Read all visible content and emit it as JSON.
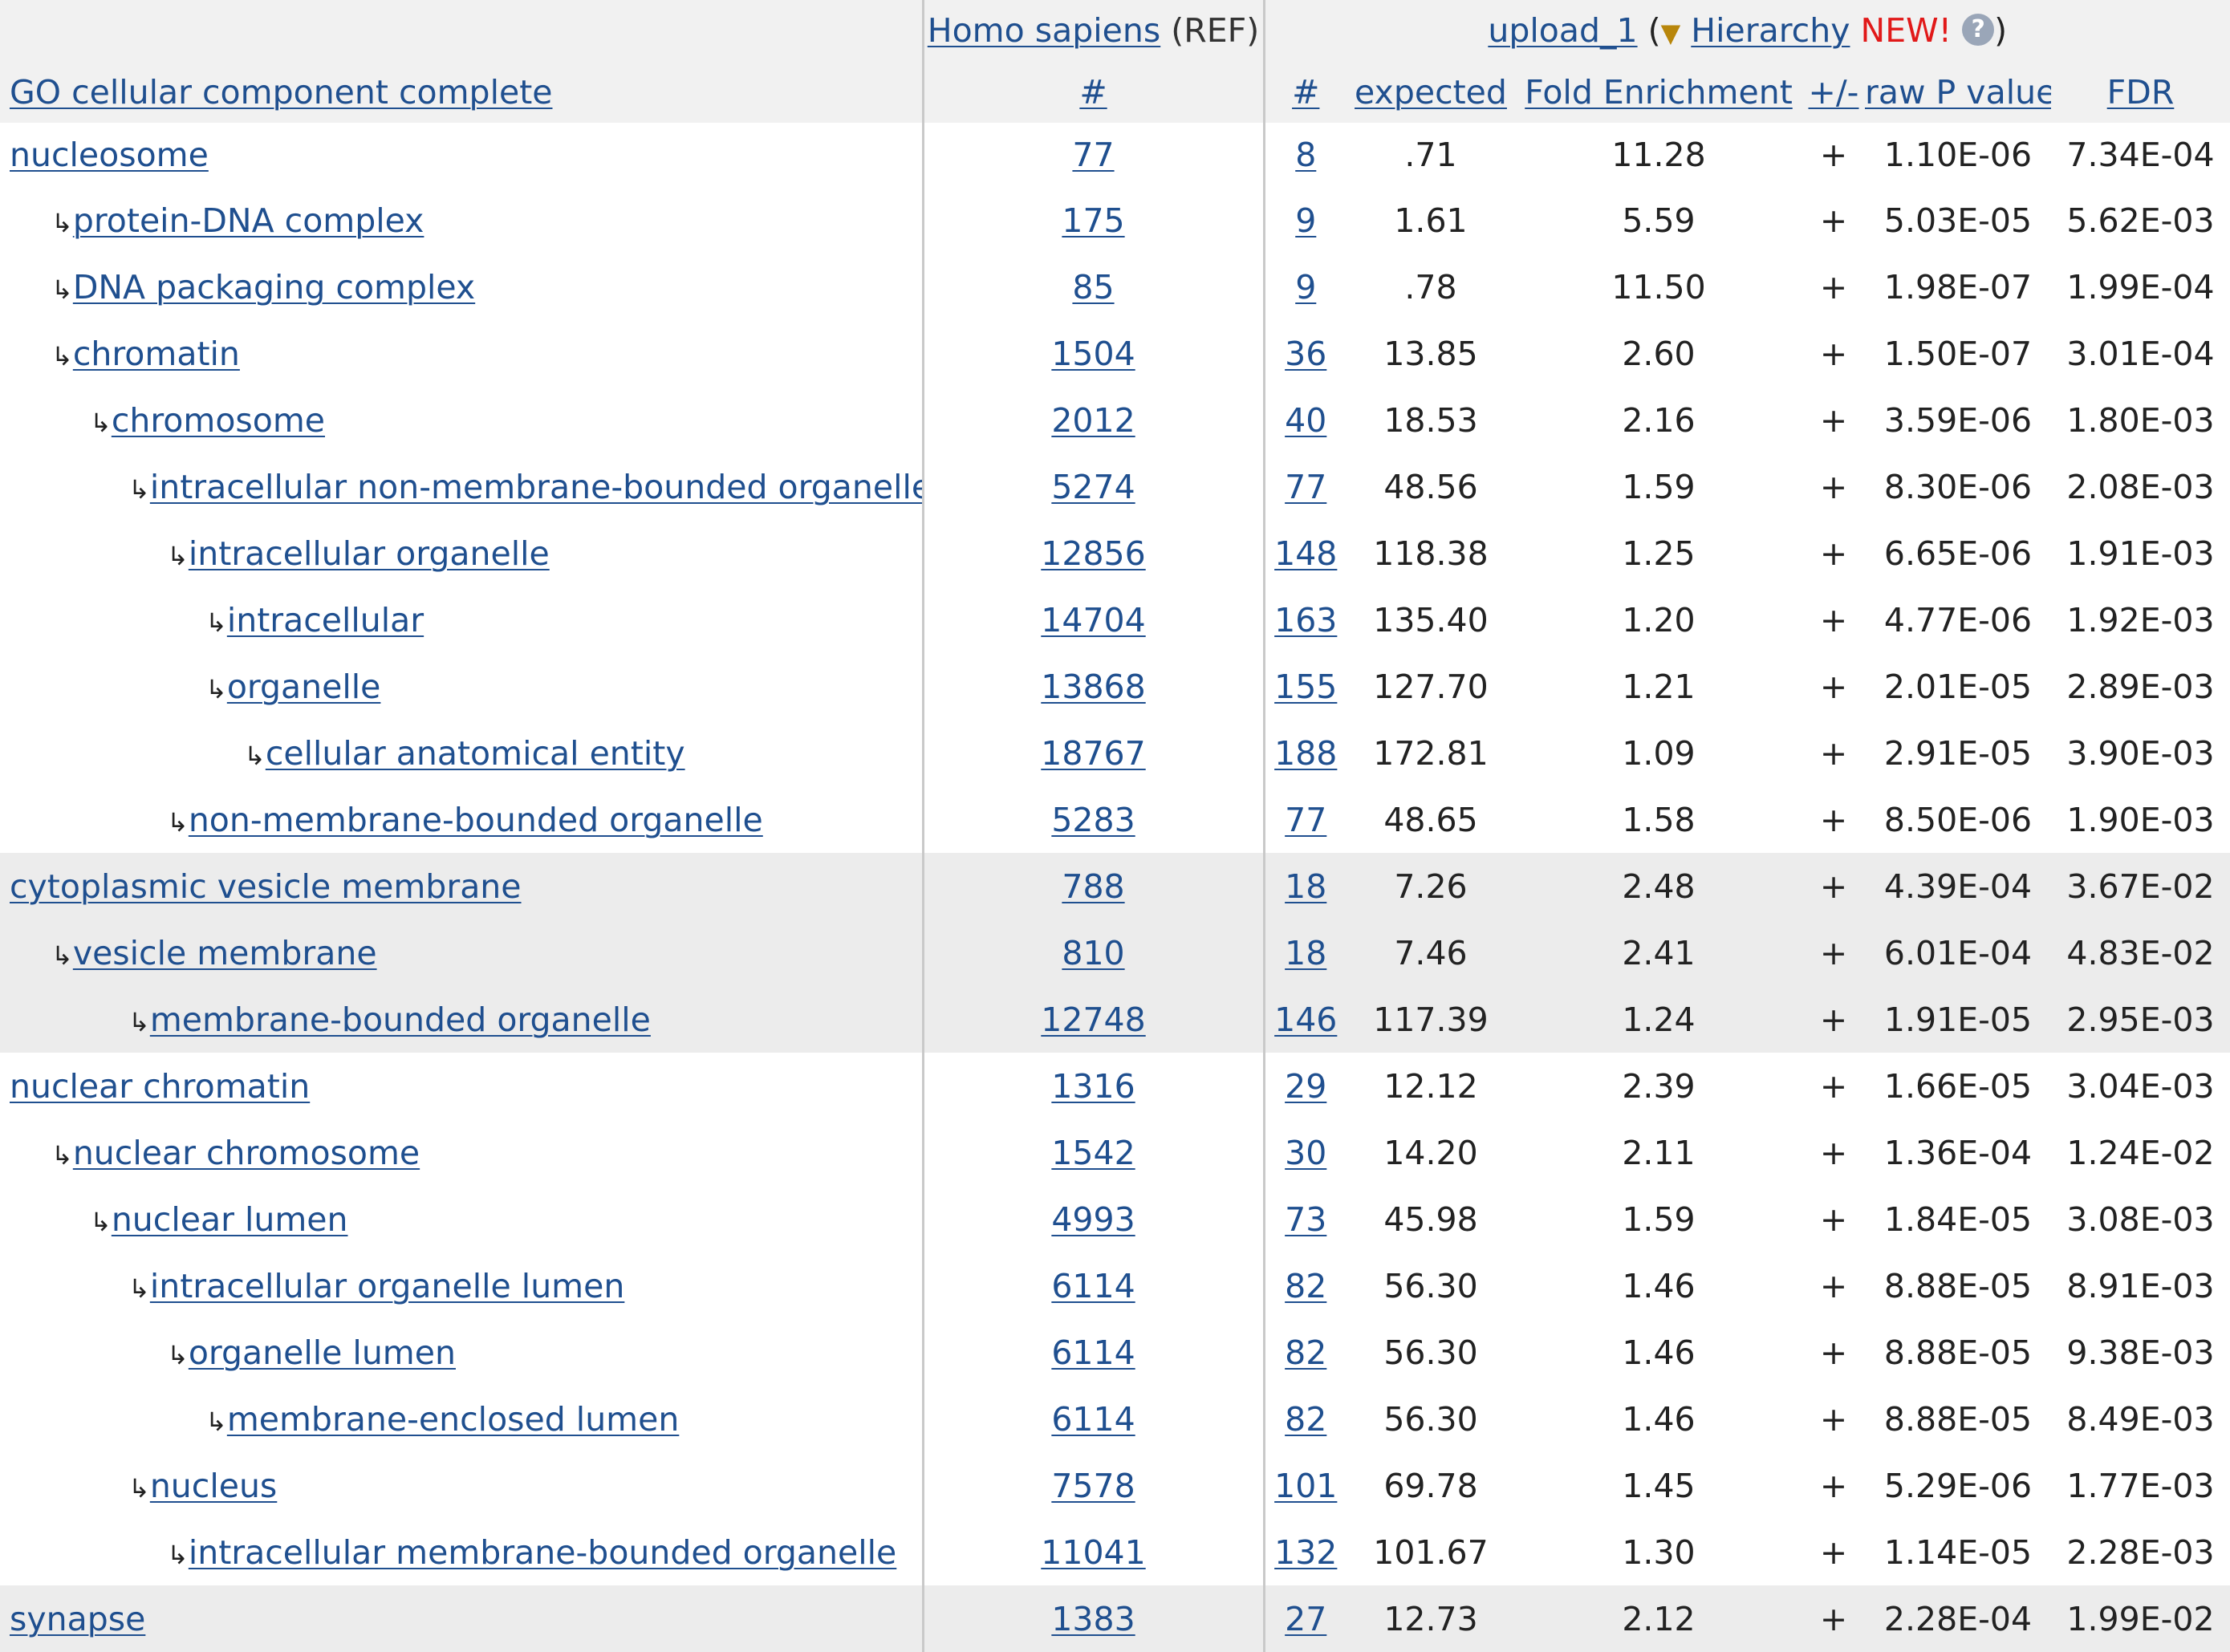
{
  "header": {
    "ref_species": "Homo sapiens",
    "ref_suffix": "(REF)",
    "upload_label": "upload_1",
    "open_paren": "(",
    "triangle": "▼",
    "hierarchy_label": "Hierarchy",
    "new_label": "NEW!",
    "help_glyph": "?",
    "close_paren": ")",
    "go_column": "GO cellular component complete",
    "ref_count": "#",
    "upload_count": "#",
    "expected": "expected",
    "fold_enrichment": "Fold Enrichment",
    "plus_minus": "+/-",
    "raw_p": "raw P value",
    "fdr": "FDR"
  },
  "colors": {
    "link": "#1f4f8f",
    "new": "#e11919",
    "header_bg": "#f1f1f1",
    "group_bg": "#ececec",
    "help_icon": "#9aa6b8"
  },
  "hierarchy_arrow": "↳",
  "rows": [
    {
      "term": "nucleosome",
      "ref": "77",
      "count": "8",
      "expected": ".71",
      "fold": "11.28",
      "sign": "+",
      "raw_p": "1.10E-06",
      "fdr": "7.34E-04"
    },
    {
      "term": "protein-DNA complex",
      "ref": "175",
      "count": "9",
      "expected": "1.61",
      "fold": "5.59",
      "sign": "+",
      "raw_p": "5.03E-05",
      "fdr": "5.62E-03"
    },
    {
      "term": "DNA packaging complex",
      "ref": "85",
      "count": "9",
      "expected": ".78",
      "fold": "11.50",
      "sign": "+",
      "raw_p": "1.98E-07",
      "fdr": "1.99E-04"
    },
    {
      "term": "chromatin",
      "ref": "1504",
      "count": "36",
      "expected": "13.85",
      "fold": "2.60",
      "sign": "+",
      "raw_p": "1.50E-07",
      "fdr": "3.01E-04"
    },
    {
      "term": "chromosome",
      "ref": "2012",
      "count": "40",
      "expected": "18.53",
      "fold": "2.16",
      "sign": "+",
      "raw_p": "3.59E-06",
      "fdr": "1.80E-03"
    },
    {
      "term": "intracellular non-membrane-bounded organelle",
      "ref": "5274",
      "count": "77",
      "expected": "48.56",
      "fold": "1.59",
      "sign": "+",
      "raw_p": "8.30E-06",
      "fdr": "2.08E-03"
    },
    {
      "term": "intracellular organelle",
      "ref": "12856",
      "count": "148",
      "expected": "118.38",
      "fold": "1.25",
      "sign": "+",
      "raw_p": "6.65E-06",
      "fdr": "1.91E-03"
    },
    {
      "term": "intracellular",
      "ref": "14704",
      "count": "163",
      "expected": "135.40",
      "fold": "1.20",
      "sign": "+",
      "raw_p": "4.77E-06",
      "fdr": "1.92E-03"
    },
    {
      "term": "organelle",
      "ref": "13868",
      "count": "155",
      "expected": "127.70",
      "fold": "1.21",
      "sign": "+",
      "raw_p": "2.01E-05",
      "fdr": "2.89E-03"
    },
    {
      "term": "cellular anatomical entity",
      "ref": "18767",
      "count": "188",
      "expected": "172.81",
      "fold": "1.09",
      "sign": "+",
      "raw_p": "2.91E-05",
      "fdr": "3.90E-03"
    },
    {
      "term": "non-membrane-bounded organelle",
      "ref": "5283",
      "count": "77",
      "expected": "48.65",
      "fold": "1.58",
      "sign": "+",
      "raw_p": "8.50E-06",
      "fdr": "1.90E-03"
    },
    {
      "term": "cytoplasmic vesicle membrane",
      "ref": "788",
      "count": "18",
      "expected": "7.26",
      "fold": "2.48",
      "sign": "+",
      "raw_p": "4.39E-04",
      "fdr": "3.67E-02"
    },
    {
      "term": "vesicle membrane",
      "ref": "810",
      "count": "18",
      "expected": "7.46",
      "fold": "2.41",
      "sign": "+",
      "raw_p": "6.01E-04",
      "fdr": "4.83E-02"
    },
    {
      "term": "membrane-bounded organelle",
      "ref": "12748",
      "count": "146",
      "expected": "117.39",
      "fold": "1.24",
      "sign": "+",
      "raw_p": "1.91E-05",
      "fdr": "2.95E-03"
    },
    {
      "term": "nuclear chromatin",
      "ref": "1316",
      "count": "29",
      "expected": "12.12",
      "fold": "2.39",
      "sign": "+",
      "raw_p": "1.66E-05",
      "fdr": "3.04E-03"
    },
    {
      "term": "nuclear chromosome",
      "ref": "1542",
      "count": "30",
      "expected": "14.20",
      "fold": "2.11",
      "sign": "+",
      "raw_p": "1.36E-04",
      "fdr": "1.24E-02"
    },
    {
      "term": "nuclear lumen",
      "ref": "4993",
      "count": "73",
      "expected": "45.98",
      "fold": "1.59",
      "sign": "+",
      "raw_p": "1.84E-05",
      "fdr": "3.08E-03"
    },
    {
      "term": "intracellular organelle lumen",
      "ref": "6114",
      "count": "82",
      "expected": "56.30",
      "fold": "1.46",
      "sign": "+",
      "raw_p": "8.88E-05",
      "fdr": "8.91E-03"
    },
    {
      "term": "organelle lumen",
      "ref": "6114",
      "count": "82",
      "expected": "56.30",
      "fold": "1.46",
      "sign": "+",
      "raw_p": "8.88E-05",
      "fdr": "9.38E-03"
    },
    {
      "term": "membrane-enclosed lumen",
      "ref": "6114",
      "count": "82",
      "expected": "56.30",
      "fold": "1.46",
      "sign": "+",
      "raw_p": "8.88E-05",
      "fdr": "8.49E-03"
    },
    {
      "term": "nucleus",
      "ref": "7578",
      "count": "101",
      "expected": "69.78",
      "fold": "1.45",
      "sign": "+",
      "raw_p": "5.29E-06",
      "fdr": "1.77E-03"
    },
    {
      "term": "intracellular membrane-bounded organelle",
      "ref": "11041",
      "count": "132",
      "expected": "101.67",
      "fold": "1.30",
      "sign": "+",
      "raw_p": "1.14E-05",
      "fdr": "2.28E-03"
    },
    {
      "term": "synapse",
      "ref": "1383",
      "count": "27",
      "expected": "12.73",
      "fold": "2.12",
      "sign": "+",
      "raw_p": "2.28E-04",
      "fdr": "1.99E-02"
    }
  ]
}
